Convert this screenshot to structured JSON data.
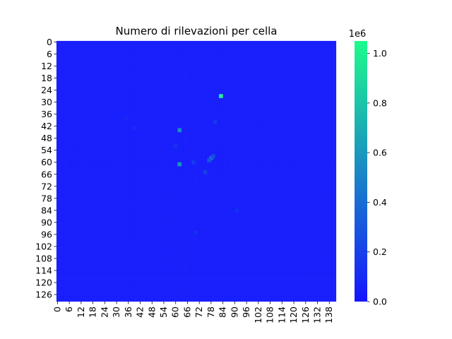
{
  "chart_data": {
    "type": "heatmap",
    "title": "Numero di rilevazioni per cella",
    "xlabel": "",
    "ylabel": "",
    "rows": 130,
    "cols": 142,
    "x_ticks": [
      "0",
      "6",
      "12",
      "18",
      "24",
      "30",
      "36",
      "42",
      "48",
      "54",
      "60",
      "66",
      "72",
      "78",
      "84",
      "90",
      "96",
      "102",
      "108",
      "114",
      "120",
      "126",
      "132",
      "138"
    ],
    "y_ticks": [
      "0",
      "6",
      "12",
      "18",
      "24",
      "30",
      "36",
      "42",
      "48",
      "54",
      "60",
      "66",
      "72",
      "78",
      "84",
      "90",
      "96",
      "102",
      "108",
      "114",
      "120",
      "126"
    ],
    "colorbar": {
      "min": 0,
      "max": 1050000,
      "ticks": [
        "0.0",
        "0.2",
        "0.4",
        "0.6",
        "0.8",
        "1.0"
      ],
      "tick_values": [
        0,
        200000,
        400000,
        600000,
        800000,
        1000000
      ],
      "offset_label": "1e6",
      "colormap_low": "#1515ff",
      "colormap_high": "#1efb8c"
    },
    "background_value": 35000,
    "hotspots": [
      {
        "row": 27,
        "col": 83,
        "value": 1000000
      },
      {
        "row": 44,
        "col": 62,
        "value": 560000
      },
      {
        "row": 61,
        "col": 62,
        "value": 600000
      },
      {
        "row": 58,
        "col": 78,
        "value": 420000
      },
      {
        "row": 59,
        "col": 77,
        "value": 300000
      },
      {
        "row": 57,
        "col": 79,
        "value": 260000
      },
      {
        "row": 60,
        "col": 69,
        "value": 180000
      },
      {
        "row": 65,
        "col": 75,
        "value": 200000
      },
      {
        "row": 40,
        "col": 80,
        "value": 160000
      },
      {
        "row": 95,
        "col": 70,
        "value": 120000
      },
      {
        "row": 84,
        "col": 91,
        "value": 120000
      },
      {
        "row": 52,
        "col": 60,
        "value": 130000
      },
      {
        "row": 43,
        "col": 39,
        "value": 100000
      },
      {
        "row": 38,
        "col": 35,
        "value": 90000
      }
    ]
  }
}
